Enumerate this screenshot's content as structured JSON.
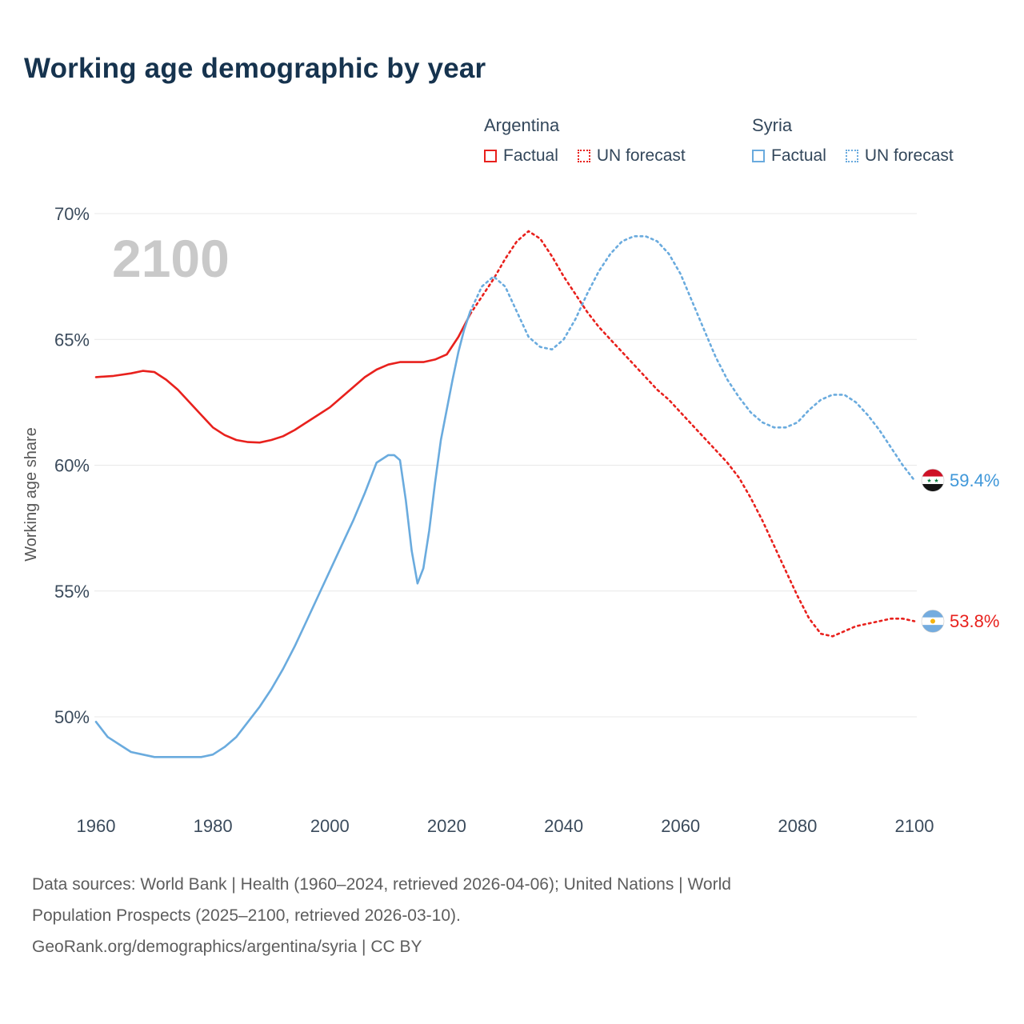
{
  "page": {
    "title": "Working age demographic by year"
  },
  "legend": {
    "groups": [
      {
        "country": "Argentina",
        "color": "#e8211d",
        "items": [
          {
            "label": "Factual",
            "style": "solid"
          },
          {
            "label": "UN forecast",
            "style": "dotted"
          }
        ]
      },
      {
        "country": "Syria",
        "color": "#6aabde",
        "items": [
          {
            "label": "Factual",
            "style": "solid"
          },
          {
            "label": "UN forecast",
            "style": "dotted"
          }
        ]
      }
    ]
  },
  "footer": {
    "lines": [
      "Data sources: World Bank | Health (1960–2024, retrieved 2026-04-06); United Nations | World",
      "Population Prospects (2025–2100, retrieved 2026-03-10).",
      "GeoRank.org/demographics/argentina/syria | CC BY"
    ]
  },
  "colors": {
    "title": "#16334e",
    "axis": "#3b4b5c",
    "muted": "#555555",
    "grid": "#e8e8e8",
    "watermark": "#c9c9c9",
    "argentina": "#e8211d",
    "syria": "#6aabde"
  },
  "chart_data": {
    "type": "line",
    "title": "Working age demographic by year",
    "xlabel": "",
    "ylabel": "Working age share",
    "watermark": "2100",
    "xlim": [
      1955,
      2115
    ],
    "ylim": [
      47.5,
      70.5
    ],
    "xticks": [
      1960,
      1980,
      2000,
      2020,
      2040,
      2060,
      2080,
      2100
    ],
    "yticks": [
      50,
      55,
      60,
      65,
      70
    ],
    "ytick_suffix": "%",
    "grid": "horizontal",
    "legend_position": "top-right",
    "series": [
      {
        "name": "Argentina Factual",
        "country": "Argentina",
        "kind": "factual",
        "color": "#e8211d",
        "style": "solid",
        "points": [
          [
            1960,
            63.5
          ],
          [
            1963,
            63.55
          ],
          [
            1966,
            63.65
          ],
          [
            1968,
            63.75
          ],
          [
            1970,
            63.7
          ],
          [
            1972,
            63.4
          ],
          [
            1974,
            63.0
          ],
          [
            1976,
            62.5
          ],
          [
            1978,
            62.0
          ],
          [
            1980,
            61.5
          ],
          [
            1982,
            61.2
          ],
          [
            1984,
            61.0
          ],
          [
            1986,
            60.92
          ],
          [
            1988,
            60.9
          ],
          [
            1990,
            61.0
          ],
          [
            1992,
            61.15
          ],
          [
            1994,
            61.4
          ],
          [
            1996,
            61.7
          ],
          [
            1998,
            62.0
          ],
          [
            2000,
            62.3
          ],
          [
            2002,
            62.7
          ],
          [
            2004,
            63.1
          ],
          [
            2006,
            63.5
          ],
          [
            2008,
            63.8
          ],
          [
            2010,
            64.0
          ],
          [
            2012,
            64.1
          ],
          [
            2014,
            64.1
          ],
          [
            2016,
            64.1
          ],
          [
            2018,
            64.2
          ],
          [
            2020,
            64.4
          ],
          [
            2022,
            65.1
          ],
          [
            2024,
            66.0
          ]
        ]
      },
      {
        "name": "Argentina UN forecast",
        "country": "Argentina",
        "kind": "forecast",
        "color": "#e8211d",
        "style": "dotted",
        "points": [
          [
            2024,
            66.0
          ],
          [
            2026,
            66.7
          ],
          [
            2028,
            67.4
          ],
          [
            2030,
            68.2
          ],
          [
            2032,
            68.9
          ],
          [
            2034,
            69.3
          ],
          [
            2036,
            69.0
          ],
          [
            2038,
            68.3
          ],
          [
            2040,
            67.5
          ],
          [
            2042,
            66.8
          ],
          [
            2044,
            66.1
          ],
          [
            2046,
            65.5
          ],
          [
            2048,
            65.0
          ],
          [
            2050,
            64.5
          ],
          [
            2052,
            64.0
          ],
          [
            2054,
            63.5
          ],
          [
            2056,
            63.0
          ],
          [
            2058,
            62.6
          ],
          [
            2060,
            62.1
          ],
          [
            2062,
            61.6
          ],
          [
            2064,
            61.1
          ],
          [
            2066,
            60.6
          ],
          [
            2068,
            60.1
          ],
          [
            2070,
            59.5
          ],
          [
            2072,
            58.7
          ],
          [
            2074,
            57.8
          ],
          [
            2076,
            56.8
          ],
          [
            2078,
            55.8
          ],
          [
            2080,
            54.8
          ],
          [
            2082,
            53.9
          ],
          [
            2084,
            53.3
          ],
          [
            2086,
            53.2
          ],
          [
            2088,
            53.4
          ],
          [
            2090,
            53.6
          ],
          [
            2092,
            53.7
          ],
          [
            2094,
            53.8
          ],
          [
            2096,
            53.9
          ],
          [
            2098,
            53.9
          ],
          [
            2100,
            53.8
          ]
        ]
      },
      {
        "name": "Syria Factual",
        "country": "Syria",
        "kind": "factual",
        "color": "#6aabde",
        "style": "solid",
        "points": [
          [
            1960,
            49.8
          ],
          [
            1962,
            49.2
          ],
          [
            1964,
            48.9
          ],
          [
            1966,
            48.6
          ],
          [
            1968,
            48.5
          ],
          [
            1970,
            48.4
          ],
          [
            1972,
            48.4
          ],
          [
            1974,
            48.4
          ],
          [
            1976,
            48.4
          ],
          [
            1978,
            48.4
          ],
          [
            1980,
            48.5
          ],
          [
            1982,
            48.8
          ],
          [
            1984,
            49.2
          ],
          [
            1986,
            49.8
          ],
          [
            1988,
            50.4
          ],
          [
            1990,
            51.1
          ],
          [
            1992,
            51.9
          ],
          [
            1994,
            52.8
          ],
          [
            1996,
            53.8
          ],
          [
            1998,
            54.8
          ],
          [
            2000,
            55.8
          ],
          [
            2002,
            56.8
          ],
          [
            2004,
            57.8
          ],
          [
            2006,
            58.9
          ],
          [
            2008,
            60.1
          ],
          [
            2010,
            60.4
          ],
          [
            2011,
            60.4
          ],
          [
            2012,
            60.2
          ],
          [
            2013,
            58.6
          ],
          [
            2014,
            56.6
          ],
          [
            2015,
            55.3
          ],
          [
            2016,
            55.9
          ],
          [
            2017,
            57.4
          ],
          [
            2018,
            59.3
          ],
          [
            2019,
            61.0
          ],
          [
            2020,
            62.2
          ],
          [
            2021,
            63.4
          ],
          [
            2022,
            64.5
          ],
          [
            2023,
            65.4
          ],
          [
            2024,
            66.1
          ]
        ]
      },
      {
        "name": "Syria UN forecast",
        "country": "Syria",
        "kind": "forecast",
        "color": "#6aabde",
        "style": "dotted",
        "points": [
          [
            2024,
            66.1
          ],
          [
            2026,
            67.1
          ],
          [
            2028,
            67.5
          ],
          [
            2030,
            67.1
          ],
          [
            2032,
            66.1
          ],
          [
            2034,
            65.1
          ],
          [
            2036,
            64.7
          ],
          [
            2038,
            64.6
          ],
          [
            2040,
            65.0
          ],
          [
            2042,
            65.8
          ],
          [
            2044,
            66.8
          ],
          [
            2046,
            67.7
          ],
          [
            2048,
            68.4
          ],
          [
            2050,
            68.9
          ],
          [
            2052,
            69.1
          ],
          [
            2054,
            69.1
          ],
          [
            2056,
            68.9
          ],
          [
            2058,
            68.4
          ],
          [
            2060,
            67.6
          ],
          [
            2062,
            66.5
          ],
          [
            2064,
            65.4
          ],
          [
            2066,
            64.3
          ],
          [
            2068,
            63.4
          ],
          [
            2070,
            62.7
          ],
          [
            2072,
            62.1
          ],
          [
            2074,
            61.7
          ],
          [
            2076,
            61.5
          ],
          [
            2078,
            61.5
          ],
          [
            2080,
            61.7
          ],
          [
            2082,
            62.2
          ],
          [
            2084,
            62.6
          ],
          [
            2086,
            62.8
          ],
          [
            2088,
            62.8
          ],
          [
            2090,
            62.5
          ],
          [
            2092,
            62.0
          ],
          [
            2094,
            61.4
          ],
          [
            2096,
            60.7
          ],
          [
            2098,
            60.0
          ],
          [
            2100,
            59.4
          ]
        ]
      }
    ],
    "end_labels": [
      {
        "series": "Syria",
        "label": "59.4%",
        "value": 59.4,
        "color": "#3f97d9",
        "flag": "syria"
      },
      {
        "series": "Argentina",
        "label": "53.8%",
        "value": 53.8,
        "color": "#e8211d",
        "flag": "argentina"
      }
    ]
  }
}
